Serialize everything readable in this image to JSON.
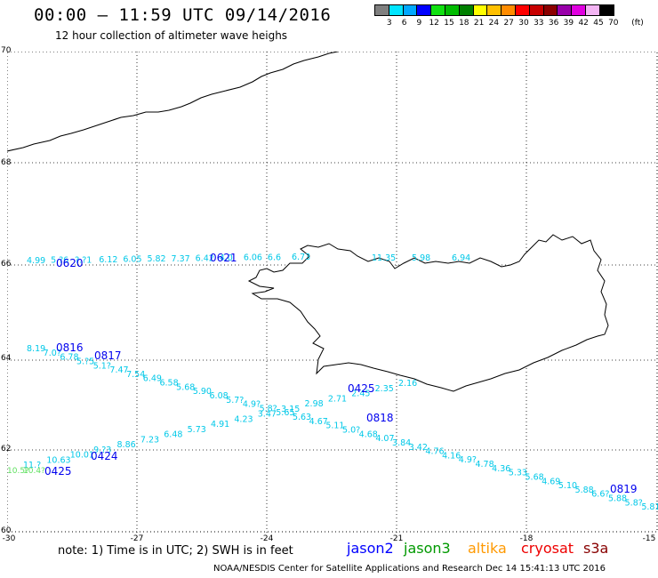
{
  "header": {
    "title": "00:00 – 11:59 UTC 09/14/2016",
    "subtitle": "12 hour collection of altimeter wave heighs"
  },
  "legend": {
    "unit": "(ft)",
    "colors": [
      "#7f7f7f",
      "#00e5ff",
      "#00a8ff",
      "#0000ff",
      "#10e010",
      "#00bb00",
      "#008000",
      "#ffff00",
      "#ffc000",
      "#ff8c00",
      "#ff0000",
      "#c80000",
      "#8b0000",
      "#9900aa",
      "#e000e0",
      "#f3b4f3",
      "#000000"
    ],
    "labels": [
      "3",
      "6",
      "9",
      "12",
      "15",
      "18",
      "21",
      "24",
      "27",
      "30",
      "33",
      "36",
      "39",
      "42",
      "45",
      "70"
    ]
  },
  "axes": {
    "y_labels": [
      "70",
      "68",
      "66",
      "64",
      "62",
      "60"
    ],
    "x_labels": [
      "-30",
      "-27",
      "-24",
      "-21",
      "-18",
      "-15"
    ]
  },
  "tracks": {
    "top_times": [
      "0620",
      "0621"
    ],
    "top_values": [
      "4.99",
      "5.?6",
      "?.?1",
      "6.12",
      "6.05",
      "5.82",
      "7.37",
      "6.42",
      "4.0",
      "6.06",
      "6.6",
      "6.73",
      "11.35",
      "5.98",
      "6.94"
    ],
    "upper_times": [
      "0816",
      "0817"
    ],
    "upper_values": [
      "8.19",
      "7.0?",
      "6.78",
      "5.?5",
      "5.1?",
      "7.47",
      "7.54",
      "6.49",
      "6.58",
      "5.68",
      "5.90",
      "6.08",
      "5.7?",
      "4.9?",
      "5.8?",
      "5.65",
      "5.63",
      "4.67",
      "5.11",
      "5.0?",
      "4.68",
      "4.07",
      "3.84",
      "3.42",
      "4.76",
      "4.16",
      "4.9?",
      "4.78",
      "4.36",
      "5.33",
      "5.68",
      "4.69",
      "5.10",
      "5.88",
      "6.6?",
      "5.88",
      "5.8?",
      "5.81",
      "5.66"
    ],
    "upper_mid_times": [
      "0818",
      "0819"
    ],
    "lower_times": [
      "0425",
      "0424",
      "0425"
    ],
    "lower_values": [
      "11.?",
      "10.63",
      "10.01",
      "9.?3",
      "8.86",
      "7.23",
      "6.48",
      "5.73",
      "4.91",
      "4.23",
      "3.47",
      "3.15",
      "2.98",
      "2.71",
      "2.45",
      "2.35",
      "2.16"
    ],
    "green_values": [
      "10.5?",
      "10.4?"
    ]
  },
  "note": "note: 1) Time is in UTC; 2) SWH is in feet",
  "satellites": [
    {
      "name": "jason2",
      "color": "#0000ff"
    },
    {
      "name": "jason3",
      "color": "#009900"
    },
    {
      "name": "altika",
      "color": "#ff9900"
    },
    {
      "name": "cryosat",
      "color": "#ee0000"
    },
    {
      "name": "s3a",
      "color": "#880000"
    }
  ],
  "footer": "NOAA/NESDIS Center for Satellite Applications and Research    Dec 14 15:41:13 UTC 2016"
}
